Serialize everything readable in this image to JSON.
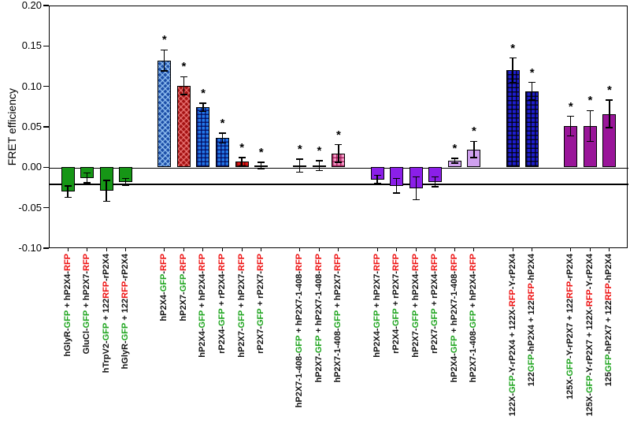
{
  "chart_data": {
    "type": "bar",
    "title": "",
    "xlabel": "",
    "ylabel": "FRET efficiency",
    "ylim": [
      -0.1,
      0.2
    ],
    "yticks": [
      0.2,
      0.15,
      0.1,
      0.05,
      0.0,
      -0.05,
      -0.1
    ],
    "zero_line_y": 0.0,
    "reference_line_y": -0.02,
    "grid": false,
    "legend": "none",
    "significance_marker": "*",
    "gap_after_indices": [
      3,
      9,
      12,
      18,
      20
    ],
    "palette": {
      "gfp_text": "#1fa51f",
      "rfp_text": "#ee1111",
      "label_text": "#111111",
      "green": "#169616",
      "blueDiamond": "#1d4fa8",
      "redDiamond": "#a51212",
      "blueGrid": "#2277e8",
      "redGrid": "#dd1515",
      "pinkGrid": "#f598c6",
      "purple": "#8b1fe8",
      "lavender": "#cfa0ee",
      "navyGrid": "#1d1dd0",
      "magenta": "#991599"
    },
    "bars": [
      {
        "label": "hGlyR-GFP + hP2X4-RFP",
        "value": -0.03,
        "error": 0.007,
        "sig": false,
        "style": "green"
      },
      {
        "label": "GluCl-GFP + hP2X7-RFP",
        "value": -0.013,
        "error": 0.006,
        "sig": false,
        "style": "green"
      },
      {
        "label": "hTrpV2-GFP + 122RFP-rP2X4",
        "value": -0.029,
        "error": 0.013,
        "sig": false,
        "style": "green"
      },
      {
        "label": "hGlyR-GFP + 122RFP-rP2X4",
        "value": -0.018,
        "error": 0.004,
        "sig": false,
        "style": "green"
      },
      {
        "label": "hP2X4-GFP-RFP",
        "value": 0.132,
        "error": 0.013,
        "sig": true,
        "style": "blueDiamond"
      },
      {
        "label": "hP2X7-GFP-RFP",
        "value": 0.101,
        "error": 0.011,
        "sig": true,
        "style": "redDiamond"
      },
      {
        "label": "hP2X4-GFP + hP2X4-RFP",
        "value": 0.074,
        "error": 0.005,
        "sig": true,
        "style": "blueGrid"
      },
      {
        "label": "rP2X4-GFP + rP2X4-RFP",
        "value": 0.036,
        "error": 0.006,
        "sig": true,
        "style": "blueGrid"
      },
      {
        "label": "hP2X7-GFP + hP2X7-RFP",
        "value": 0.007,
        "error": 0.005,
        "sig": true,
        "style": "redGrid"
      },
      {
        "label": "rP2X7-GFP + rP2X7-RFP",
        "value": 0.002,
        "error": 0.004,
        "sig": true,
        "style": "redGrid"
      },
      {
        "label": "hP2X7-1-408-GFP + hP2X7-1-408-RFP",
        "value": 0.002,
        "error": 0.008,
        "sig": true,
        "style": "pinkGrid"
      },
      {
        "label": "hP2X7-GFP + hP2X7-1-408-RFP",
        "value": 0.002,
        "error": 0.006,
        "sig": true,
        "style": "pinkGrid"
      },
      {
        "label": "hP2X7-1-408-GFP + hP2X7-RFP",
        "value": 0.017,
        "error": 0.011,
        "sig": true,
        "style": "pinkGrid"
      },
      {
        "label": "hP2X4-GFP + hP2X7-RFP",
        "value": -0.015,
        "error": 0.005,
        "sig": false,
        "style": "purple"
      },
      {
        "label": "rP2X4-GFP + rP2X7-RFP",
        "value": -0.023,
        "error": 0.009,
        "sig": false,
        "style": "purple"
      },
      {
        "label": "hP2X7-GFP + hP2X4-RFP",
        "value": -0.026,
        "error": 0.014,
        "sig": false,
        "style": "purple"
      },
      {
        "label": "rP2X7-GFP + rP2X4-RFP",
        "value": -0.018,
        "error": 0.006,
        "sig": false,
        "style": "purple"
      },
      {
        "label": "hP2X4-GFP + hP2X7-1-408-RFP",
        "value": 0.008,
        "error": 0.003,
        "sig": true,
        "style": "lavender"
      },
      {
        "label": "hP2X7-1-408-GFP + hP2X4-RFP",
        "value": 0.022,
        "error": 0.01,
        "sig": true,
        "style": "lavender"
      },
      {
        "label": "122X-GFP-Y-rP2X4 + 122X-RFP-Y-rP2X4",
        "value": 0.12,
        "error": 0.015,
        "sig": true,
        "style": "navyGrid"
      },
      {
        "label": "122GFP-hP2X4 + 122RFP-hP2X4",
        "value": 0.094,
        "error": 0.011,
        "sig": true,
        "style": "navyGrid"
      },
      {
        "label": "125X-GFP-Y-rP2X7 + 122RFP-rP2X4",
        "value": 0.051,
        "error": 0.012,
        "sig": true,
        "style": "magenta"
      },
      {
        "label": "125X-GFP-Y-rP2X7 + 122X-RFP-Y-rP2X4",
        "value": 0.051,
        "error": 0.019,
        "sig": true,
        "style": "magenta"
      },
      {
        "label": "125GFP-hP2X7 + 122RFP-hP2X4",
        "value": 0.066,
        "error": 0.017,
        "sig": true,
        "style": "magenta"
      }
    ]
  }
}
